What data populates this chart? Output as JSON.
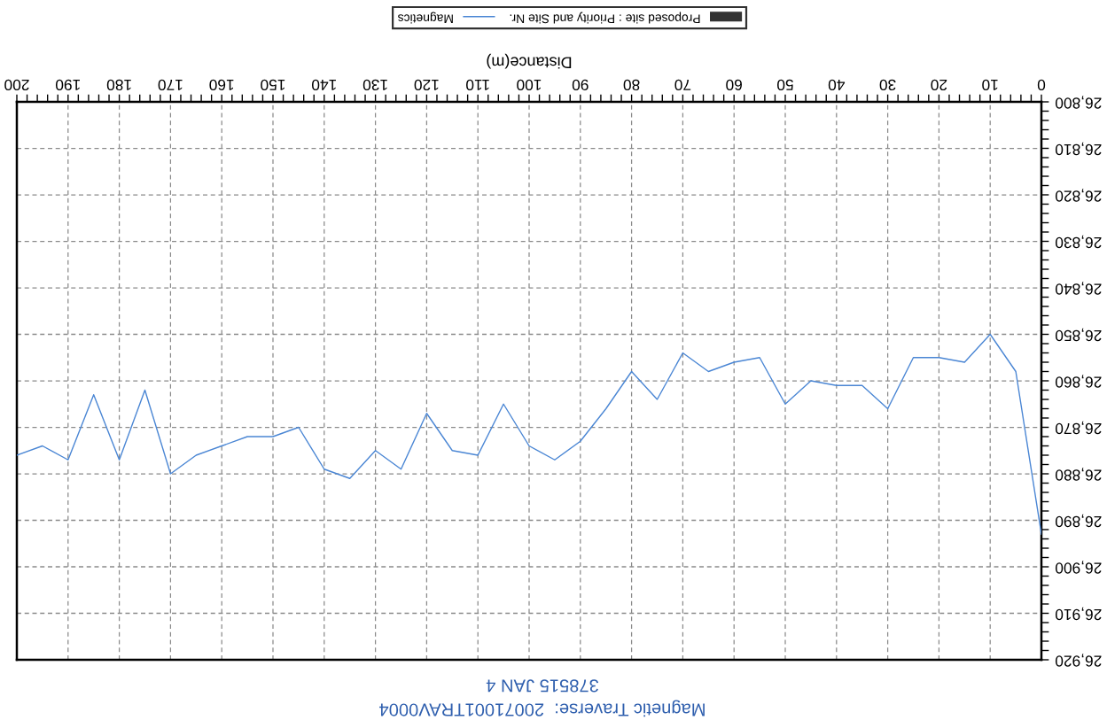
{
  "chart_data": {
    "type": "line",
    "title": "Magnetic Traverse:  20071001TRAV0004",
    "subtitle": "378515 JAN 4",
    "xlabel": "Distance(m)",
    "x": [
      0,
      5,
      10,
      15,
      20,
      25,
      30,
      35,
      40,
      45,
      50,
      55,
      60,
      65,
      70,
      75,
      80,
      85,
      90,
      95,
      100,
      105,
      110,
      115,
      120,
      125,
      130,
      135,
      140,
      145,
      150,
      155,
      160,
      165,
      170,
      175,
      180,
      185,
      190,
      195,
      200
    ],
    "series": [
      {
        "name": "Proposed site : Priority and Site Nr.",
        "type": "bar",
        "color": "#333333",
        "values": [
          null,
          null,
          null,
          null,
          null,
          null,
          null,
          null,
          null,
          null,
          null,
          null,
          null,
          null,
          null,
          null,
          null,
          null,
          null,
          null,
          null,
          null,
          null,
          null,
          null,
          null,
          null,
          null,
          null,
          null,
          null,
          null,
          null,
          null,
          null,
          null,
          null,
          null,
          null,
          null,
          null
        ]
      },
      {
        "name": "Magnetics",
        "color": "#4a86d4",
        "values": [
          26893,
          26858,
          26850,
          26856,
          26855,
          26855,
          26866,
          26861,
          26861,
          26860,
          26865,
          26855,
          26856,
          26858,
          26854,
          26864,
          26858,
          26866,
          26873,
          26877,
          26874,
          26865,
          26876,
          26875,
          26867,
          26879,
          26875,
          26881,
          26879,
          26870,
          26872,
          26872,
          26874,
          26876,
          26880,
          26862,
          26877,
          26863,
          26877,
          26874,
          26876
        ]
      }
    ],
    "xlim": [
      200,
      0
    ],
    "ylim": [
      26920,
      26800
    ],
    "xticks": [
      0,
      {
        "value": 2,
        "label": null
      },
      {
        "value": 4,
        "label": null
      },
      {
        "value": 6,
        "label": null
      },
      {
        "value": 8,
        "label": null
      },
      10,
      {
        "value": 12,
        "label": null
      },
      {
        "value": 14,
        "label": null
      },
      {
        "value": 16,
        "label": null
      },
      {
        "value": 18,
        "label": null
      },
      20,
      {
        "value": 22,
        "label": null
      },
      {
        "value": 24,
        "label": null
      },
      {
        "value": 26,
        "label": null
      },
      {
        "value": 28,
        "label": null
      },
      30,
      {
        "value": 32,
        "label": null
      },
      {
        "value": 34,
        "label": null
      },
      {
        "value": 36,
        "label": null
      },
      {
        "value": 38,
        "label": null
      },
      40,
      {
        "value": 42,
        "label": null
      },
      {
        "value": 44,
        "label": null
      },
      {
        "value": 46,
        "label": null
      },
      {
        "value": 48,
        "label": null
      },
      50,
      {
        "value": 52,
        "label": null
      },
      {
        "value": 54,
        "label": null
      },
      {
        "value": 56,
        "label": null
      },
      {
        "value": 58,
        "label": null
      },
      60,
      {
        "value": 62,
        "label": null
      },
      {
        "value": 64,
        "label": null
      },
      {
        "value": 66,
        "label": null
      },
      {
        "value": 68,
        "label": null
      },
      70,
      {
        "value": 72,
        "label": null
      },
      {
        "value": 74,
        "label": null
      },
      {
        "value": 76,
        "label": null
      },
      {
        "value": 78,
        "label": null
      },
      80,
      {
        "value": 82,
        "label": null
      },
      {
        "value": 84,
        "label": null
      },
      {
        "value": 86,
        "label": null
      },
      {
        "value": 88,
        "label": null
      },
      90,
      {
        "value": 92,
        "label": null
      },
      {
        "value": 94,
        "label": null
      },
      {
        "value": 96,
        "label": null
      },
      {
        "value": 98,
        "label": null
      },
      100,
      {
        "value": 102,
        "label": null
      },
      {
        "value": 104,
        "label": null
      },
      {
        "value": 106,
        "label": null
      },
      {
        "value": 108,
        "label": null
      },
      110,
      {
        "value": 112,
        "label": null
      },
      {
        "value": 114,
        "label": null
      },
      {
        "value": 116,
        "label": null
      },
      {
        "value": 118,
        "label": null
      },
      120,
      {
        "value": 122,
        "label": null
      },
      {
        "value": 124,
        "label": null
      },
      {
        "value": 126,
        "label": null
      },
      {
        "value": 128,
        "label": null
      },
      130,
      {
        "value": 132,
        "label": null
      },
      {
        "value": 134,
        "label": null
      },
      {
        "value": 136,
        "label": null
      },
      {
        "value": 138,
        "label": null
      },
      140,
      {
        "value": 142,
        "label": null
      },
      {
        "value": 144,
        "label": null
      },
      {
        "value": 146,
        "label": null
      },
      {
        "value": 148,
        "label": null
      },
      150,
      {
        "value": 152,
        "label": null
      },
      {
        "value": 154,
        "label": null
      },
      {
        "value": 156,
        "label": null
      },
      {
        "value": 158,
        "label": null
      },
      160,
      {
        "value": 162,
        "label": null
      },
      {
        "value": 164,
        "label": null
      },
      {
        "value": 166,
        "label": null
      },
      {
        "value": 168,
        "label": null
      },
      170,
      {
        "value": 172,
        "label": null
      },
      {
        "value": 174,
        "label": null
      },
      {
        "value": 176,
        "label": null
      },
      {
        "value": 178,
        "label": null
      },
      180,
      {
        "value": 182,
        "label": null
      },
      {
        "value": 184,
        "label": null
      },
      {
        "value": 186,
        "label": null
      },
      {
        "value": 188,
        "label": null
      },
      190,
      {
        "value": 192,
        "label": null
      },
      {
        "value": 194,
        "label": null
      },
      {
        "value": 196,
        "label": null
      },
      {
        "value": 198,
        "label": null
      },
      200
    ],
    "yticks": [
      {
        "value": 26800,
        "label": "26,800"
      },
      {
        "value": 26802,
        "label": null
      },
      {
        "value": 26804,
        "label": null
      },
      {
        "value": 26806,
        "label": null
      },
      {
        "value": 26808,
        "label": null
      },
      {
        "value": 26810,
        "label": "26,810"
      },
      {
        "value": 26812,
        "label": null
      },
      {
        "value": 26814,
        "label": null
      },
      {
        "value": 26816,
        "label": null
      },
      {
        "value": 26818,
        "label": null
      },
      {
        "value": 26820,
        "label": "26,820"
      },
      {
        "value": 26822,
        "label": null
      },
      {
        "value": 26824,
        "label": null
      },
      {
        "value": 26826,
        "label": null
      },
      {
        "value": 26828,
        "label": null
      },
      {
        "value": 26830,
        "label": "26,830"
      },
      {
        "value": 26832,
        "label": null
      },
      {
        "value": 26834,
        "label": null
      },
      {
        "value": 26836,
        "label": null
      },
      {
        "value": 26838,
        "label": null
      },
      {
        "value": 26840,
        "label": "26,840"
      },
      {
        "value": 26842,
        "label": null
      },
      {
        "value": 26844,
        "label": null
      },
      {
        "value": 26846,
        "label": null
      },
      {
        "value": 26848,
        "label": null
      },
      {
        "value": 26850,
        "label": "26,850"
      },
      {
        "value": 26852,
        "label": null
      },
      {
        "value": 26854,
        "label": null
      },
      {
        "value": 26856,
        "label": null
      },
      {
        "value": 26858,
        "label": null
      },
      {
        "value": 26860,
        "label": "26,860"
      },
      {
        "value": 26862,
        "label": null
      },
      {
        "value": 26864,
        "label": null
      },
      {
        "value": 26866,
        "label": null
      },
      {
        "value": 26868,
        "label": null
      },
      {
        "value": 26870,
        "label": "26,870"
      },
      {
        "value": 26872,
        "label": null
      },
      {
        "value": 26874,
        "label": null
      },
      {
        "value": 26876,
        "label": null
      },
      {
        "value": 26878,
        "label": null
      },
      {
        "value": 26880,
        "label": "26,880"
      },
      {
        "value": 26882,
        "label": null
      },
      {
        "value": 26884,
        "label": null
      },
      {
        "value": 26886,
        "label": null
      },
      {
        "value": 26888,
        "label": null
      },
      {
        "value": 26890,
        "label": "26,890"
      },
      {
        "value": 26892,
        "label": null
      },
      {
        "value": 26894,
        "label": null
      },
      {
        "value": 26896,
        "label": null
      },
      {
        "value": 26898,
        "label": null
      },
      {
        "value": 26900,
        "label": "26,900"
      },
      {
        "value": 26902,
        "label": null
      },
      {
        "value": 26904,
        "label": null
      },
      {
        "value": 26906,
        "label": null
      },
      {
        "value": 26908,
        "label": null
      },
      {
        "value": 26910,
        "label": "26,910"
      },
      {
        "value": 26912,
        "label": null
      },
      {
        "value": 26914,
        "label": null
      },
      {
        "value": 26916,
        "label": null
      },
      {
        "value": 26918,
        "label": null
      },
      {
        "value": 26920,
        "label": "26,920"
      }
    ],
    "grid": true,
    "legend": "top"
  }
}
